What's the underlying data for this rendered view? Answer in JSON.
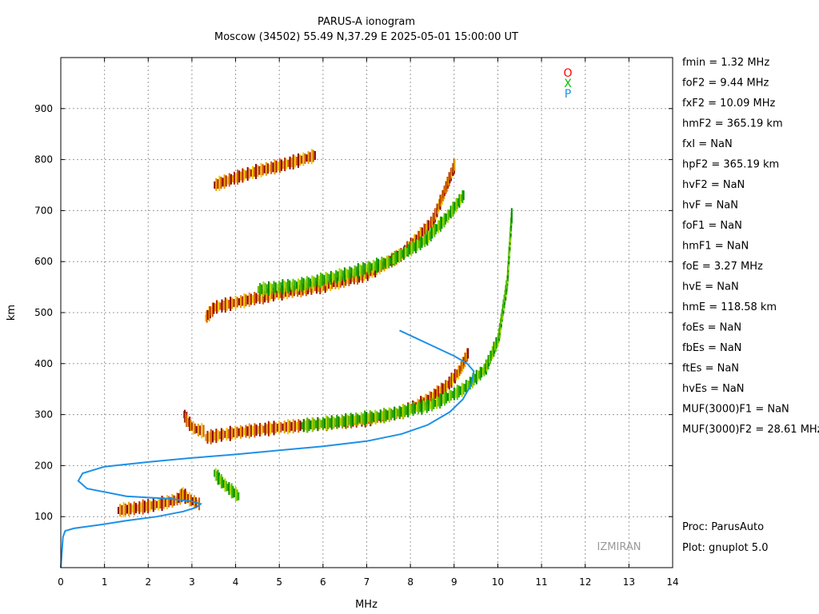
{
  "chart_data": {
    "type": "scatter",
    "title": "PARUS-A ionogram",
    "subtitle": "Moscow (34502) 55.49 N,37.29 E   2025-05-01 15:00:00 UT",
    "xlabel": "MHz",
    "ylabel": "km",
    "xlim": [
      0,
      14
    ],
    "ylim": [
      0,
      1000
    ],
    "xticks": [
      0,
      1,
      2,
      3,
      4,
      5,
      6,
      7,
      8,
      9,
      10,
      11,
      12,
      13,
      14
    ],
    "yticks": [
      100,
      200,
      300,
      400,
      500,
      600,
      700,
      800,
      900
    ],
    "grid": true,
    "legend": {
      "position": "top-right",
      "entries": [
        {
          "name": "O",
          "color": "#ff0000"
        },
        {
          "name": "X",
          "color": "#00c000"
        },
        {
          "name": "P",
          "color": "#1e90e6"
        }
      ]
    },
    "series": [
      {
        "name": "O",
        "colors": [
          "#8b0000",
          "#b22000",
          "#d85a00",
          "#e89a00",
          "#f0c800"
        ],
        "traces": [
          {
            "x": [
              1.3,
              1.8,
              2.2,
              2.6,
              2.75
            ],
            "y": [
              112,
              118,
              124,
              132,
              140
            ]
          },
          {
            "x": [
              2.75,
              2.85,
              3.0,
              3.15
            ],
            "y": [
              148,
              138,
              130,
              125
            ]
          },
          {
            "x": [
              2.8,
              2.9,
              3.0,
              3.1,
              3.25
            ],
            "y": [
              300,
              285,
              275,
              270,
              268
            ]
          },
          {
            "x": [
              3.3,
              4.0,
              5.0,
              6.0,
              7.0,
              7.8,
              8.3,
              8.8,
              9.1,
              9.3
            ],
            "y": [
              255,
              265,
              275,
              282,
              290,
              305,
              325,
              355,
              385,
              420
            ]
          },
          {
            "x": [
              3.3,
              3.5,
              4.0,
              5.0,
              6.0,
              7.0,
              7.8,
              8.5,
              9.0
            ],
            "y": [
              490,
              510,
              520,
              538,
              552,
              575,
              615,
              680,
              790
            ]
          },
          {
            "x": [
              3.5,
              4.0,
              4.5,
              5.0,
              5.5,
              5.8
            ],
            "y": [
              750,
              765,
              778,
              788,
              800,
              808
            ]
          }
        ]
      },
      {
        "name": "X",
        "colors": [
          "#008c00",
          "#20a800",
          "#60c000",
          "#a8d800"
        ],
        "traces": [
          {
            "x": [
              3.5,
              3.7,
              3.9,
              4.05
            ],
            "y": [
              185,
              165,
              150,
              140
            ]
          },
          {
            "x": [
              5.5,
              6.5,
              7.5,
              8.5,
              9.2,
              9.7,
              10.0,
              10.2,
              10.3
            ],
            "y": [
              278,
              288,
              300,
              320,
              350,
              390,
              450,
              560,
              690
            ]
          },
          {
            "x": [
              4.5,
              5.5,
              6.5,
              7.5,
              8.3,
              8.8,
              9.2
            ],
            "y": [
              545,
              555,
              575,
              600,
              640,
              685,
              730
            ]
          }
        ]
      },
      {
        "name": "P",
        "color": "#1e90e6",
        "x": [
          0.0,
          0.05,
          0.1,
          0.3,
          0.9,
          1.5,
          2.2,
          2.8,
          3.1,
          3.2,
          3.0,
          2.5,
          1.5,
          0.6,
          0.4,
          0.5,
          1.0,
          2.0,
          3.0,
          4.0,
          5.0,
          6.0,
          7.0,
          7.8,
          8.4,
          8.9,
          9.2,
          9.4,
          9.45,
          9.3,
          9.0,
          8.5,
          8.0,
          7.75
        ],
        "y": [
          0,
          60,
          72,
          77,
          84,
          92,
          100,
          110,
          118,
          125,
          130,
          135,
          140,
          155,
          170,
          185,
          198,
          207,
          215,
          222,
          230,
          238,
          248,
          262,
          280,
          305,
          330,
          360,
          385,
          400,
          415,
          435,
          455,
          465
        ]
      }
    ]
  },
  "params": [
    "fmin = 1.32 MHz",
    "foF2 = 9.44 MHz",
    "fxF2 = 10.09 MHz",
    "hmF2 = 365.19 km",
    "fxI  = NaN",
    "hpF2 = 365.19 km",
    "hvF2 = NaN",
    "hvF  = NaN",
    "foF1 = NaN",
    "hmF1 = NaN",
    "foE  = 3.27 MHz",
    "hvE  = NaN",
    "hmE  = 118.58 km",
    "foEs = NaN",
    "fbEs = NaN",
    "ftEs = NaN",
    "hvEs = NaN",
    "MUF(3000)F1 = NaN",
    "MUF(3000)F2 = 28.61 MHz"
  ],
  "footer": {
    "proc": "Proc: ParusAuto",
    "plot": "Plot: gnuplot 5.0"
  },
  "watermark": "IZMIRAN"
}
